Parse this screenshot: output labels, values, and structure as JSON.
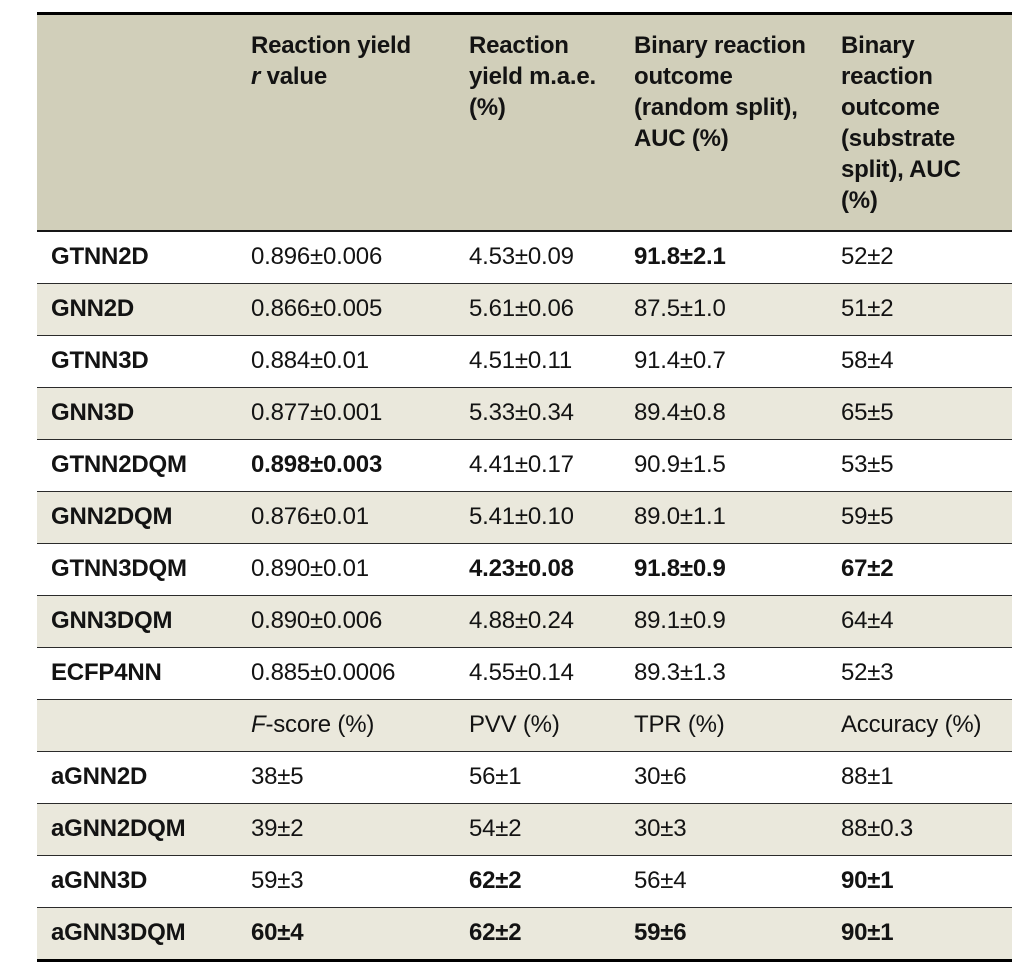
{
  "colors": {
    "header_bg": "#d1cfba",
    "alt_row_bg": "#eae8dc",
    "row_bg": "#ffffff",
    "border": "#000000",
    "text": "#131313"
  },
  "header": {
    "c0": "",
    "c1_pre": "Reaction yield",
    "c1_italic": "r",
    "c1_post": " value",
    "c2": "Reaction yield m.a.e. (%)",
    "c3": "Binary reaction outcome (random split), AUC (%)",
    "c4": "Binary reaction outcome (substrate split), AUC (%)"
  },
  "rows": [
    {
      "label": "GTNN2D",
      "cells": [
        {
          "t": "0.896±0.006",
          "b": false
        },
        {
          "t": "4.53±0.09",
          "b": false
        },
        {
          "t": "91.8±2.1",
          "b": true
        },
        {
          "t": "52±2",
          "b": false
        }
      ]
    },
    {
      "label": "GNN2D",
      "cells": [
        {
          "t": "0.866±0.005",
          "b": false
        },
        {
          "t": "5.61±0.06",
          "b": false
        },
        {
          "t": "87.5±1.0",
          "b": false
        },
        {
          "t": "51±2",
          "b": false
        }
      ]
    },
    {
      "label": "GTNN3D",
      "cells": [
        {
          "t": "0.884±0.01",
          "b": false
        },
        {
          "t": "4.51±0.11",
          "b": false
        },
        {
          "t": "91.4±0.7",
          "b": false
        },
        {
          "t": "58±4",
          "b": false
        }
      ]
    },
    {
      "label": "GNN3D",
      "cells": [
        {
          "t": "0.877±0.001",
          "b": false
        },
        {
          "t": "5.33±0.34",
          "b": false
        },
        {
          "t": "89.4±0.8",
          "b": false
        },
        {
          "t": "65±5",
          "b": false
        }
      ]
    },
    {
      "label": "GTNN2DQM",
      "cells": [
        {
          "t": "0.898±0.003",
          "b": true
        },
        {
          "t": "4.41±0.17",
          "b": false
        },
        {
          "t": "90.9±1.5",
          "b": false
        },
        {
          "t": "53±5",
          "b": false
        }
      ]
    },
    {
      "label": "GNN2DQM",
      "cells": [
        {
          "t": "0.876±0.01",
          "b": false
        },
        {
          "t": "5.41±0.10",
          "b": false
        },
        {
          "t": "89.0±1.1",
          "b": false
        },
        {
          "t": "59±5",
          "b": false
        }
      ]
    },
    {
      "label": "GTNN3DQM",
      "cells": [
        {
          "t": "0.890±0.01",
          "b": false
        },
        {
          "t": "4.23±0.08",
          "b": true
        },
        {
          "t": "91.8±0.9",
          "b": true
        },
        {
          "t": "67±2",
          "b": true
        }
      ]
    },
    {
      "label": "GNN3DQM",
      "cells": [
        {
          "t": "0.890±0.006",
          "b": false
        },
        {
          "t": "4.88±0.24",
          "b": false
        },
        {
          "t": "89.1±0.9",
          "b": false
        },
        {
          "t": "64±4",
          "b": false
        }
      ]
    },
    {
      "label": "ECFP4NN",
      "cells": [
        {
          "t": "0.885±0.0006",
          "b": false
        },
        {
          "t": "4.55±0.14",
          "b": false
        },
        {
          "t": "89.3±1.3",
          "b": false
        },
        {
          "t": "52±3",
          "b": false
        }
      ]
    }
  ],
  "subheader": {
    "c0": "",
    "c1_italic": "F",
    "c1_rest": "-score (%)",
    "c2": "PVV (%)",
    "c3": "TPR (%)",
    "c4": "Accuracy (%)"
  },
  "rows2": [
    {
      "label": "aGNN2D",
      "cells": [
        {
          "t": "38±5",
          "b": false
        },
        {
          "t": "56±1",
          "b": false
        },
        {
          "t": "30±6",
          "b": false
        },
        {
          "t": "88±1",
          "b": false
        }
      ]
    },
    {
      "label": "aGNN2DQM",
      "cells": [
        {
          "t": "39±2",
          "b": false
        },
        {
          "t": "54±2",
          "b": false
        },
        {
          "t": "30±3",
          "b": false
        },
        {
          "t": "88±0.3",
          "b": false
        }
      ]
    },
    {
      "label": "aGNN3D",
      "cells": [
        {
          "t": "59±3",
          "b": false
        },
        {
          "t": "62±2",
          "b": true
        },
        {
          "t": "56±4",
          "b": false
        },
        {
          "t": "90±1",
          "b": true
        }
      ]
    },
    {
      "label": "aGNN3DQM",
      "cells": [
        {
          "t": "60±4",
          "b": true
        },
        {
          "t": "62±2",
          "b": true
        },
        {
          "t": "59±6",
          "b": true
        },
        {
          "t": "90±1",
          "b": true
        }
      ]
    }
  ]
}
